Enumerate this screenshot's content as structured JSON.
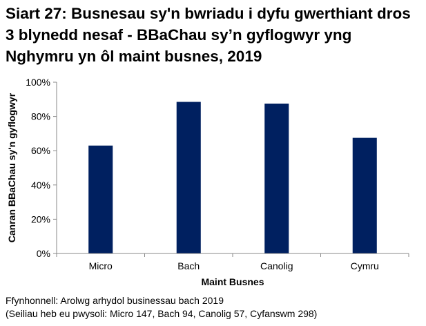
{
  "title": "Siart 27: Busnesau sy'n bwriadu i dyfu gwerthiant dros 3 blynedd nesaf - BBaChau sy’n gyflogwyr yng Nghymru yn ôl maint busnes, 2019",
  "source_line1": "Ffynhonnell: Arolwg arhydol businessau bach 2019",
  "source_line2": "(Seiliau heb eu pwysoli: Micro 147, Bach 94, Canolig 57, Cyfanswm 298)",
  "chart_data": {
    "type": "bar",
    "title": "Siart 27: Busnesau sy'n bwriadu i dyfu gwerthiant dros 3 blynedd nesaf - BBaChau sy’n gyflogwyr yng Nghymru yn ôl maint busnes, 2019",
    "xlabel": "Maint Busnes",
    "ylabel": "Canran BBaChau sy'n gyflogwyr",
    "categories": [
      "Micro",
      "Bach",
      "Canolig",
      "Cymru"
    ],
    "values": [
      63,
      88.5,
      87.5,
      67.5
    ],
    "ylim": [
      0,
      100
    ],
    "yticks": [
      0,
      20,
      40,
      60,
      80,
      100
    ],
    "ytick_labels": [
      "0%",
      "20%",
      "40%",
      "60%",
      "80%",
      "100%"
    ],
    "bar_color": "#002060",
    "grid": false,
    "legend": "none"
  }
}
